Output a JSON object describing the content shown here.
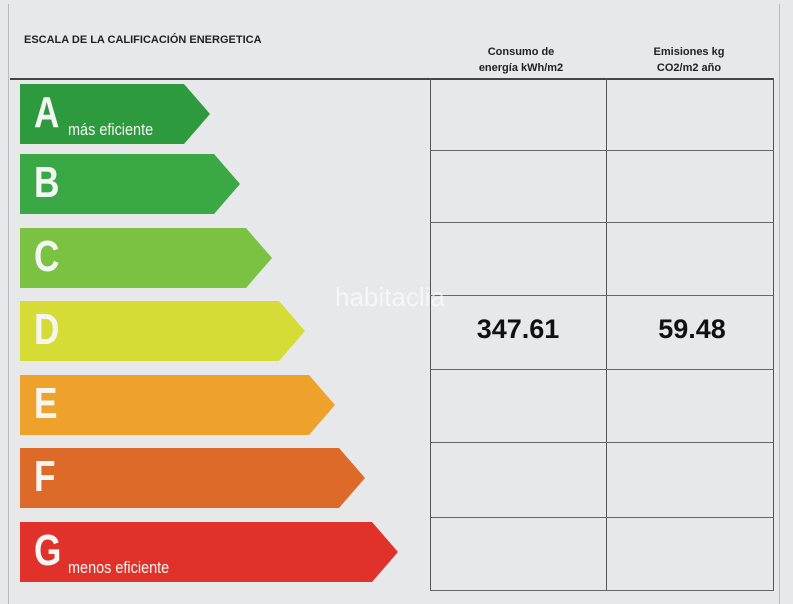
{
  "title": "ESCALA DE LA CALIFICACIÓN ENERGETICA",
  "columns": [
    {
      "line1": "Consumo de",
      "line2": "energía kWh/m2"
    },
    {
      "line1": "Emisiones kg",
      "line2": "CO2/m2 año"
    }
  ],
  "ratings": [
    {
      "letter": "A",
      "label": "más eficiente",
      "color": "#2e9a3e"
    },
    {
      "letter": "B",
      "label": "",
      "color": "#3aa845"
    },
    {
      "letter": "C",
      "label": "",
      "color": "#7cc242"
    },
    {
      "letter": "D",
      "label": "",
      "color": "#d6dc36"
    },
    {
      "letter": "E",
      "label": "",
      "color": "#eea22c"
    },
    {
      "letter": "F",
      "label": "",
      "color": "#de6a2a"
    },
    {
      "letter": "G",
      "label": "menos eficiente",
      "color": "#e0322a"
    }
  ],
  "current_rating": "D",
  "values": {
    "consumo": "347.61",
    "emisiones": "59.48"
  },
  "watermark": "habitaclia"
}
